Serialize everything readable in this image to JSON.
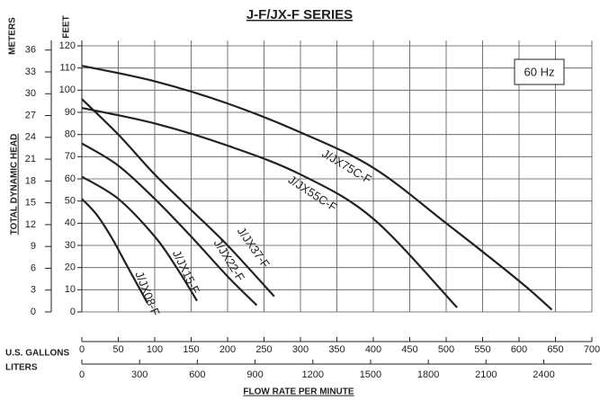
{
  "chart_data": {
    "type": "line",
    "title": "J-F/JX-F SERIES",
    "annotation": "60 Hz",
    "ylabel": "TOTAL DYNAMIC HEAD",
    "ylabel_units": "FEET",
    "y2label_units": "METERS",
    "xlabel": "FLOW RATE PER MINUTE",
    "xlabel_units": "U.S. GALLONS",
    "x2label_units": "LITERS",
    "xlim": [
      0,
      700
    ],
    "xticks": [
      0,
      50,
      100,
      150,
      200,
      250,
      300,
      350,
      400,
      450,
      500,
      550,
      600,
      650,
      700
    ],
    "x2lim": [
      0,
      2650
    ],
    "x2ticks": [
      0,
      300,
      600,
      900,
      1200,
      1500,
      1800,
      2100,
      2400
    ],
    "ylim": [
      0,
      120
    ],
    "yticks": [
      0,
      10,
      20,
      30,
      40,
      50,
      60,
      70,
      80,
      90,
      100,
      110,
      120
    ],
    "y2lim": [
      0,
      36.58
    ],
    "y2ticks": [
      0,
      3,
      6,
      9,
      12,
      15,
      18,
      21,
      24,
      27,
      30,
      33,
      36
    ],
    "grid": true,
    "series": [
      {
        "name": "J/JX08-F",
        "color": "#222222",
        "x": [
          0,
          20,
          40,
          60,
          80,
          90
        ],
        "values": [
          51,
          44,
          34,
          22,
          10,
          4
        ]
      },
      {
        "name": "J/JX15-F",
        "color": "#222222",
        "x": [
          0,
          50,
          100,
          130,
          158
        ],
        "values": [
          61,
          51,
          34,
          20,
          5
        ]
      },
      {
        "name": "J/JX22-F",
        "color": "#222222",
        "x": [
          0,
          50,
          100,
          150,
          200,
          240
        ],
        "values": [
          76,
          66,
          51,
          34,
          16,
          3
        ]
      },
      {
        "name": "J/JX37-F",
        "color": "#222222",
        "x": [
          0,
          50,
          100,
          150,
          200,
          264
        ],
        "values": [
          96,
          80,
          62,
          46,
          30,
          7
        ]
      },
      {
        "name": "J/JX55C-F",
        "color": "#222222",
        "x": [
          0,
          100,
          200,
          300,
          400,
          515
        ],
        "values": [
          92,
          85,
          75,
          62,
          42,
          2
        ]
      },
      {
        "name": "J/JX75C-F",
        "color": "#222222",
        "x": [
          0,
          100,
          200,
          300,
          400,
          500,
          600,
          645
        ],
        "values": [
          111,
          104,
          94,
          81,
          65,
          40,
          14,
          1
        ]
      }
    ]
  }
}
